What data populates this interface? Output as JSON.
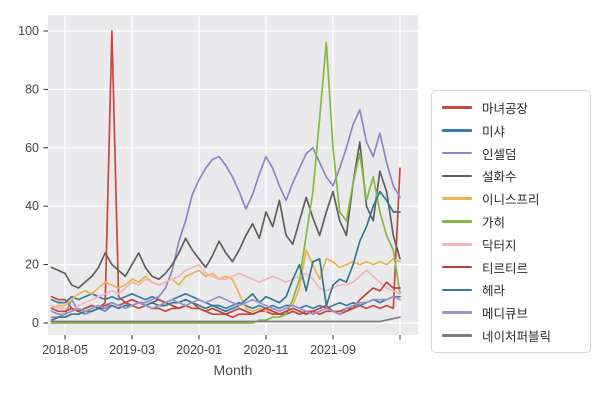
{
  "figure": {
    "background": "#ffffff",
    "plot_background": "#eaeaed",
    "grid_color": "#ffffff",
    "tick_text_color": "#444444",
    "tick_mark_color": "#333333"
  },
  "chart_data": {
    "type": "line",
    "title": "",
    "xlabel": "Month",
    "ylabel": "",
    "ylim": [
      0,
      100
    ],
    "y_ticks": [
      0,
      20,
      40,
      60,
      80,
      100
    ],
    "x_tick_labels": [
      "2018-05",
      "2019-03",
      "2020-01",
      "2020-11",
      "2021-09",
      ""
    ],
    "x_tick_indices": [
      2,
      12,
      22,
      32,
      42,
      52
    ],
    "x_start": "2018-03",
    "x_end": "2022-07",
    "x_freq": "monthly",
    "n_points": 53,
    "grid": true,
    "legend_position": "right",
    "series": [
      {
        "name": "마녀공장",
        "color": "#c9483b",
        "values": [
          9,
          8,
          8,
          5,
          4,
          5,
          6,
          5,
          7,
          100,
          9,
          7,
          6,
          5,
          6,
          5,
          5,
          4,
          5,
          5,
          6,
          5,
          5,
          4,
          3,
          3,
          3,
          2,
          3,
          3,
          3,
          4,
          4,
          3,
          3,
          3,
          4,
          3,
          4,
          4,
          3,
          4,
          4,
          4,
          5,
          5,
          6,
          5,
          6,
          5,
          6,
          5,
          53
        ]
      },
      {
        "name": "미샤",
        "color": "#3a7ca8",
        "values": [
          8,
          7,
          7,
          9,
          8,
          9,
          10,
          9,
          8,
          9,
          8,
          9,
          10,
          9,
          8,
          9,
          8,
          7,
          8,
          9,
          10,
          9,
          8,
          7,
          6,
          6,
          5,
          6,
          7,
          6,
          5,
          6,
          5,
          6,
          5,
          6,
          6,
          5,
          6,
          5,
          6,
          5,
          6,
          7,
          6,
          7,
          6,
          7,
          8,
          7,
          8,
          9,
          9
        ]
      },
      {
        "name": "인셀덤",
        "color": "#9184c8",
        "values": [
          2,
          2,
          3,
          8,
          4,
          3,
          4,
          5,
          4,
          6,
          5,
          6,
          6,
          7,
          7,
          8,
          9,
          12,
          18,
          28,
          35,
          44,
          49,
          53,
          56,
          57,
          54,
          50,
          45,
          39,
          44,
          51,
          57,
          53,
          47,
          42,
          48,
          53,
          58,
          60,
          55,
          50,
          47,
          53,
          60,
          68,
          73,
          62,
          57,
          65,
          55,
          47,
          43
        ]
      },
      {
        "name": "설화수",
        "color": "#606060",
        "values": [
          19,
          18,
          17,
          13,
          12,
          14,
          16,
          19,
          24,
          20,
          18,
          16,
          20,
          24,
          19,
          16,
          15,
          17,
          20,
          24,
          29,
          25,
          22,
          19,
          23,
          28,
          24,
          21,
          25,
          30,
          34,
          29,
          38,
          33,
          42,
          30,
          27,
          35,
          43,
          36,
          30,
          38,
          45,
          35,
          30,
          48,
          62,
          40,
          35,
          52,
          45,
          30,
          22
        ]
      },
      {
        "name": "이니스프리",
        "color": "#e8b54f",
        "values": [
          5,
          6,
          6,
          8,
          10,
          11,
          10,
          12,
          14,
          13,
          12,
          13,
          15,
          14,
          16,
          14,
          13,
          14,
          15,
          13,
          16,
          17,
          18,
          16,
          17,
          15,
          16,
          15,
          10,
          5,
          4,
          5,
          4,
          5,
          4,
          5,
          6,
          12,
          25,
          20,
          15,
          22,
          21,
          19,
          20,
          21,
          20,
          21,
          20,
          21,
          20,
          22,
          21
        ]
      },
      {
        "name": "가히",
        "color": "#86b842",
        "values": [
          0,
          0,
          0,
          0,
          0,
          0,
          0,
          0,
          0,
          0,
          0,
          0,
          0,
          0,
          0,
          0,
          0,
          0,
          0,
          0,
          0,
          0,
          0,
          0,
          0,
          0,
          0,
          0,
          0,
          0,
          0,
          1,
          1,
          2,
          2,
          3,
          8,
          15,
          30,
          45,
          70,
          96,
          60,
          38,
          35,
          48,
          58,
          42,
          50,
          38,
          30,
          25,
          10
        ]
      },
      {
        "name": "닥터지",
        "color": "#f3b5bc",
        "values": [
          6,
          5,
          5,
          4,
          6,
          7,
          8,
          9,
          10,
          11,
          10,
          12,
          14,
          13,
          15,
          14,
          13,
          14,
          15,
          16,
          18,
          19,
          20,
          17,
          16,
          15,
          15,
          16,
          17,
          16,
          15,
          14,
          15,
          16,
          15,
          14,
          15,
          16,
          17,
          15,
          12,
          11,
          12,
          13,
          13,
          14,
          16,
          18,
          16,
          14,
          12,
          11,
          10
        ]
      },
      {
        "name": "티르티르",
        "color": "#b9453f",
        "values": [
          5,
          4,
          4,
          5,
          4,
          5,
          6,
          5,
          6,
          7,
          6,
          7,
          8,
          7,
          6,
          7,
          8,
          7,
          6,
          5,
          6,
          7,
          5,
          4,
          5,
          4,
          3,
          4,
          5,
          4,
          3,
          4,
          5,
          4,
          3,
          4,
          5,
          4,
          3,
          4,
          5,
          6,
          4,
          3,
          4,
          5,
          8,
          10,
          12,
          11,
          14,
          12,
          12
        ]
      },
      {
        "name": "헤라",
        "color": "#2e7b93",
        "values": [
          1,
          2,
          2,
          3,
          3,
          4,
          4,
          5,
          5,
          6,
          5,
          6,
          6,
          7,
          6,
          7,
          6,
          6,
          7,
          7,
          8,
          7,
          6,
          5,
          6,
          5,
          4,
          5,
          6,
          8,
          10,
          7,
          9,
          8,
          7,
          9,
          15,
          20,
          11,
          21,
          22,
          6,
          13,
          15,
          14,
          20,
          28,
          33,
          40,
          45,
          42,
          38,
          38
        ]
      },
      {
        "name": "메디큐브",
        "color": "#9c93cb",
        "values": [
          4,
          3,
          3,
          4,
          5,
          4,
          5,
          6,
          5,
          7,
          6,
          5,
          6,
          7,
          6,
          5,
          6,
          7,
          8,
          7,
          6,
          7,
          8,
          7,
          8,
          9,
          8,
          7,
          6,
          7,
          8,
          7,
          6,
          5,
          4,
          5,
          6,
          5,
          4,
          3,
          4,
          5,
          4,
          3,
          5,
          6,
          7,
          7,
          8,
          8,
          8,
          9,
          8
        ]
      },
      {
        "name": "네이처퍼블릭",
        "color": "#7d7d7d",
        "values": [
          0.5,
          0.5,
          0.5,
          0.5,
          0.5,
          0.5,
          0.5,
          0.5,
          0.5,
          0.5,
          0.5,
          0.5,
          0.5,
          0.5,
          0.5,
          0.5,
          0.5,
          0.5,
          0.5,
          0.5,
          0.5,
          0.5,
          0.5,
          0.5,
          0.5,
          0.5,
          0.5,
          0.5,
          0.5,
          0.5,
          0.5,
          0.5,
          0.5,
          0.5,
          0.5,
          0.5,
          0.5,
          0.5,
          0.5,
          0.5,
          0.5,
          0.5,
          0.5,
          0.5,
          0.5,
          0.5,
          0.5,
          0.5,
          0.5,
          0.5,
          1,
          1.5,
          2
        ]
      }
    ]
  }
}
